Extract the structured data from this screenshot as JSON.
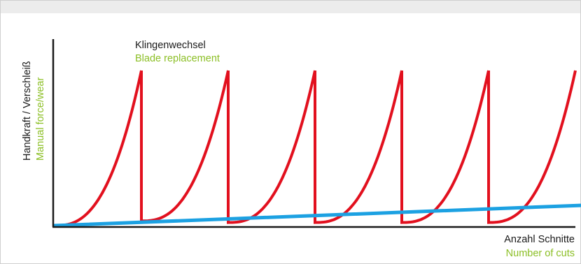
{
  "colors": {
    "frame": "#cfcfcf",
    "band": "#ececec",
    "axis": "#1a1a1a",
    "label_primary": "#1a1a1a",
    "label_secondary": "#8cbf26",
    "force_curve": "#e2101e",
    "reference_line": "#1ca1e2"
  },
  "chart_data": {
    "type": "line",
    "annotation": {
      "line1": "Klingenwechsel",
      "line2": "Blade replacement"
    },
    "ylabel": {
      "line1": "Handkraft / Verschleiß",
      "line2": "Manual force/wear"
    },
    "xlabel": {
      "line1": "Anzahl Schnitte",
      "line2": "Number of cuts"
    },
    "xlim": [
      0,
      750
    ],
    "ylim": [
      0,
      1
    ],
    "grid": false,
    "legend": "none",
    "series": [
      {
        "color": "#e2101e",
        "kind": "sawtooth",
        "cycles": [
          {
            "x_start": 0,
            "x_end": 125,
            "y_start": 0.0,
            "y_peak": 1.0
          },
          {
            "x_start": 125,
            "x_end": 250,
            "y_start": 0.03,
            "y_peak": 1.0
          },
          {
            "x_start": 250,
            "x_end": 375,
            "y_start": 0.02,
            "y_peak": 1.0
          },
          {
            "x_start": 375,
            "x_end": 500,
            "y_start": 0.02,
            "y_peak": 1.0
          },
          {
            "x_start": 500,
            "x_end": 625,
            "y_start": 0.02,
            "y_peak": 1.0
          },
          {
            "x_start": 625,
            "x_end": 750,
            "y_start": 0.02,
            "y_peak": 1.0
          }
        ]
      },
      {
        "color": "#1ca1e2",
        "kind": "linear",
        "x": [
          0,
          760
        ],
        "y": [
          0.0,
          0.13
        ]
      }
    ]
  }
}
